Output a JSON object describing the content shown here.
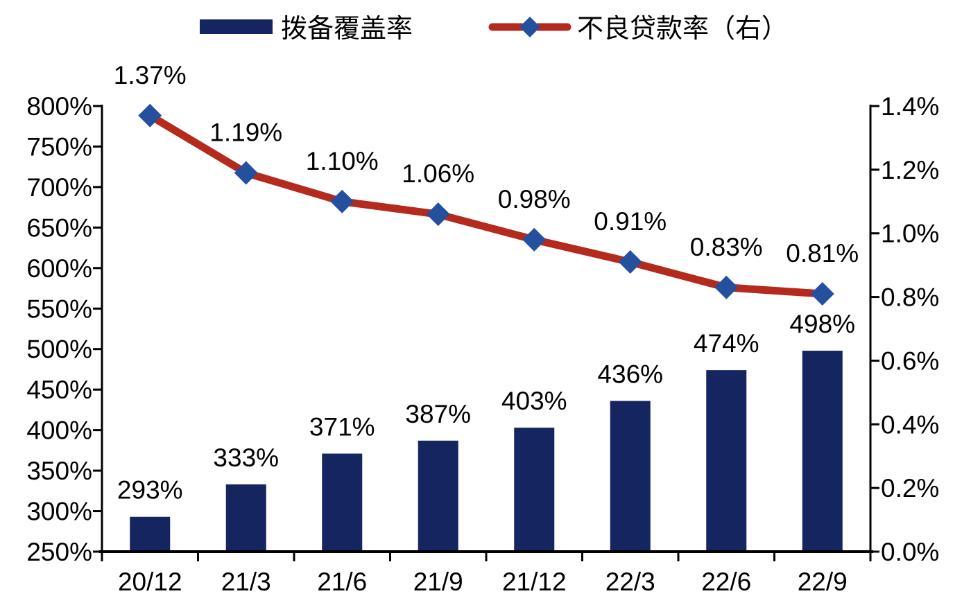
{
  "legend": {
    "bar_label": "拨备覆盖率",
    "line_label": "不良贷款率（右）"
  },
  "colors": {
    "bar": "#152560",
    "line": "#B42A1D",
    "marker": "#24509E",
    "axis": "#000000",
    "text": "#000000",
    "background": "#FFFFFF"
  },
  "chart_data": {
    "type": "combo",
    "title": "",
    "grid": false,
    "legend_position": "top",
    "categories": [
      "20/12",
      "21/3",
      "21/6",
      "21/9",
      "21/12",
      "22/3",
      "22/6",
      "22/9"
    ],
    "series": [
      {
        "name": "拨备覆盖率",
        "type": "bar",
        "axis": "left",
        "values": [
          293,
          333,
          371,
          387,
          403,
          436,
          474,
          498
        ],
        "labels": [
          "293%",
          "333%",
          "371%",
          "387%",
          "403%",
          "436%",
          "474%",
          "498%"
        ]
      },
      {
        "name": "不良贷款率（右）",
        "type": "line",
        "axis": "right",
        "values": [
          1.37,
          1.19,
          1.1,
          1.06,
          0.98,
          0.91,
          0.83,
          0.81
        ],
        "labels": [
          "1.37%",
          "1.19%",
          "1.10%",
          "1.06%",
          "0.98%",
          "0.91%",
          "0.83%",
          "0.81%"
        ]
      }
    ],
    "left_axis": {
      "min": 250,
      "max": 800,
      "step": 50,
      "tick_values": [
        800,
        750,
        700,
        650,
        600,
        550,
        500,
        450,
        400,
        350,
        300,
        250
      ],
      "tick_labels": [
        "800%",
        "750%",
        "700%",
        "650%",
        "600%",
        "550%",
        "500%",
        "450%",
        "400%",
        "350%",
        "300%",
        "250%"
      ]
    },
    "right_axis": {
      "min": 0.0,
      "max": 1.4,
      "step": 0.2,
      "tick_values": [
        1.4,
        1.2,
        1.0,
        0.8,
        0.6,
        0.4,
        0.2,
        0.0
      ],
      "tick_labels": [
        "1.4%",
        "1.2%",
        "1.0%",
        "0.8%",
        "0.6%",
        "0.4%",
        "0.2%",
        "0.0%"
      ]
    }
  }
}
